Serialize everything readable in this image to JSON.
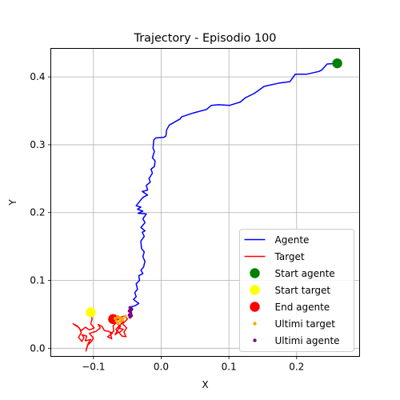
{
  "chart_data": {
    "type": "line",
    "title": "Trajectory - Episodio 100",
    "xlabel": "X",
    "ylabel": "Y",
    "xlim": [
      -0.163,
      0.293
    ],
    "ylim": [
      -0.012,
      0.442
    ],
    "grid": true,
    "legend_position": "lower-right",
    "xticks": [
      -0.1,
      0.0,
      0.1,
      0.2
    ],
    "xtick_labels": [
      "−0.1",
      "0.0",
      "0.1",
      "0.2"
    ],
    "yticks": [
      0.0,
      0.1,
      0.2,
      0.3,
      0.4
    ],
    "ytick_labels": [
      "0.0",
      "0.1",
      "0.2",
      "0.3",
      "0.4"
    ],
    "series": [
      {
        "name": "Agente",
        "kind": "line",
        "color": "#0000ff",
        "points": [
          [
            0.26,
            0.42
          ],
          [
            0.245,
            0.419
          ],
          [
            0.237,
            0.41
          ],
          [
            0.233,
            0.408
          ],
          [
            0.215,
            0.404
          ],
          [
            0.198,
            0.404
          ],
          [
            0.193,
            0.397
          ],
          [
            0.19,
            0.393
          ],
          [
            0.175,
            0.391
          ],
          [
            0.152,
            0.386
          ],
          [
            0.138,
            0.376
          ],
          [
            0.124,
            0.369
          ],
          [
            0.117,
            0.363
          ],
          [
            0.101,
            0.358
          ],
          [
            0.085,
            0.359
          ],
          [
            0.074,
            0.358
          ],
          [
            0.067,
            0.352
          ],
          [
            0.048,
            0.347
          ],
          [
            0.03,
            0.341
          ],
          [
            0.028,
            0.338
          ],
          [
            0.012,
            0.329
          ],
          [
            0.008,
            0.322
          ],
          [
            0.007,
            0.313
          ],
          [
            0.004,
            0.311
          ],
          [
            -0.008,
            0.31
          ],
          [
            -0.011,
            0.307
          ],
          [
            -0.012,
            0.295
          ],
          [
            -0.01,
            0.29
          ],
          [
            -0.013,
            0.281
          ],
          [
            -0.009,
            0.276
          ],
          [
            -0.01,
            0.268
          ],
          [
            -0.015,
            0.264
          ],
          [
            -0.013,
            0.258
          ],
          [
            -0.018,
            0.25
          ],
          [
            -0.016,
            0.245
          ],
          [
            -0.022,
            0.24
          ],
          [
            -0.02,
            0.233
          ],
          [
            -0.028,
            0.231
          ],
          [
            -0.02,
            0.226
          ],
          [
            -0.026,
            0.223
          ],
          [
            -0.029,
            0.22
          ],
          [
            -0.037,
            0.21
          ],
          [
            -0.03,
            0.208
          ],
          [
            -0.035,
            0.205
          ],
          [
            -0.027,
            0.202
          ],
          [
            -0.034,
            0.199
          ],
          [
            -0.022,
            0.198
          ],
          [
            -0.027,
            0.191
          ],
          [
            -0.024,
            0.185
          ],
          [
            -0.03,
            0.178
          ],
          [
            -0.024,
            0.173
          ],
          [
            -0.028,
            0.171
          ],
          [
            -0.025,
            0.165
          ],
          [
            -0.03,
            0.158
          ],
          [
            -0.029,
            0.147
          ],
          [
            -0.025,
            0.142
          ],
          [
            -0.027,
            0.135
          ],
          [
            -0.024,
            0.128
          ],
          [
            -0.026,
            0.12
          ],
          [
            -0.03,
            0.115
          ],
          [
            -0.027,
            0.11
          ],
          [
            -0.033,
            0.107
          ],
          [
            -0.032,
            0.1
          ],
          [
            -0.037,
            0.095
          ],
          [
            -0.035,
            0.087
          ],
          [
            -0.039,
            0.082
          ],
          [
            -0.037,
            0.076
          ],
          [
            -0.041,
            0.072
          ],
          [
            -0.033,
            0.066
          ],
          [
            -0.038,
            0.063
          ],
          [
            -0.044,
            0.061
          ],
          [
            -0.042,
            0.057
          ],
          [
            -0.046,
            0.053
          ],
          [
            -0.047,
            0.048
          ]
        ]
      },
      {
        "name": "Target",
        "kind": "line",
        "color": "#ff0000",
        "points": [
          [
            -0.104,
            0.053
          ],
          [
            -0.102,
            0.043
          ],
          [
            -0.104,
            0.036
          ],
          [
            -0.099,
            0.03
          ],
          [
            -0.106,
            0.027
          ],
          [
            -0.112,
            0.031
          ],
          [
            -0.118,
            0.026
          ],
          [
            -0.124,
            0.033
          ],
          [
            -0.13,
            0.036
          ],
          [
            -0.121,
            0.03
          ],
          [
            -0.118,
            0.023
          ],
          [
            -0.122,
            0.016
          ],
          [
            -0.117,
            0.01
          ],
          [
            -0.114,
            0.016
          ],
          [
            -0.117,
            0.02
          ],
          [
            -0.11,
            0.018
          ],
          [
            -0.112,
            0.011
          ],
          [
            -0.104,
            0.013
          ],
          [
            -0.108,
            0.007
          ],
          [
            -0.111,
            -0.004
          ],
          [
            -0.109,
            0.004
          ],
          [
            -0.103,
            0.01
          ],
          [
            -0.1,
            0.015
          ],
          [
            -0.106,
            0.022
          ],
          [
            -0.096,
            0.025
          ],
          [
            -0.09,
            0.03
          ],
          [
            -0.093,
            0.035
          ],
          [
            -0.087,
            0.032
          ],
          [
            -0.084,
            0.026
          ],
          [
            -0.078,
            0.025
          ],
          [
            -0.072,
            0.022
          ],
          [
            -0.079,
            0.017
          ],
          [
            -0.073,
            0.014
          ],
          [
            -0.075,
            0.022
          ],
          [
            -0.07,
            0.025
          ],
          [
            -0.071,
            0.033
          ],
          [
            -0.066,
            0.038
          ],
          [
            -0.07,
            0.044
          ],
          [
            -0.064,
            0.048
          ],
          [
            -0.06,
            0.044
          ],
          [
            -0.056,
            0.04
          ],
          [
            -0.06,
            0.035
          ],
          [
            -0.064,
            0.03
          ],
          [
            -0.056,
            0.028
          ],
          [
            -0.062,
            0.023
          ],
          [
            -0.058,
            0.018
          ],
          [
            -0.052,
            0.017
          ],
          [
            -0.055,
            0.024
          ],
          [
            -0.051,
            0.03
          ],
          [
            -0.057,
            0.036
          ],
          [
            -0.05,
            0.043
          ],
          [
            -0.053,
            0.048
          ],
          [
            -0.059,
            0.046
          ],
          [
            -0.066,
            0.04
          ],
          [
            -0.062,
            0.033
          ],
          [
            -0.067,
            0.028
          ],
          [
            -0.063,
            0.024
          ],
          [
            -0.068,
            0.02
          ],
          [
            -0.065,
            0.026
          ],
          [
            -0.06,
            0.032
          ],
          [
            -0.066,
            0.037
          ],
          [
            -0.07,
            0.043
          ]
        ]
      },
      {
        "name": "Start agente",
        "kind": "point",
        "color": "#008000",
        "size": 6.2,
        "points": [
          [
            0.26,
            0.42
          ]
        ]
      },
      {
        "name": "Start target",
        "kind": "point",
        "color": "#ffff00",
        "size": 6.2,
        "points": [
          [
            -0.104,
            0.053
          ]
        ]
      },
      {
        "name": "End agente",
        "kind": "point",
        "color": "#ff0000",
        "size": 6.2,
        "points": [
          [
            -0.071,
            0.043
          ]
        ]
      },
      {
        "name": "Ultimi target",
        "kind": "point",
        "color": "#ffa500",
        "size": 2.0,
        "points": [
          [
            -0.053,
            0.047
          ],
          [
            -0.057,
            0.043
          ],
          [
            -0.06,
            0.04
          ],
          [
            -0.064,
            0.037
          ],
          [
            -0.066,
            0.04
          ],
          [
            -0.068,
            0.044
          ],
          [
            -0.064,
            0.046
          ],
          [
            -0.061,
            0.045
          ],
          [
            -0.058,
            0.041
          ]
        ]
      },
      {
        "name": "Ultimi agente",
        "kind": "point",
        "color": "#800080",
        "size": 2.0,
        "points": [
          [
            -0.045,
            0.057
          ],
          [
            -0.046,
            0.06
          ],
          [
            -0.047,
            0.055
          ],
          [
            -0.045,
            0.052
          ],
          [
            -0.044,
            0.048
          ],
          [
            -0.046,
            0.046
          ],
          [
            -0.047,
            0.049
          ]
        ]
      }
    ],
    "legend": [
      {
        "label": "Agente",
        "kind": "line",
        "color": "#0000ff"
      },
      {
        "label": "Target",
        "kind": "line",
        "color": "#ff0000"
      },
      {
        "label": "Start agente",
        "kind": "big-dot",
        "color": "#008000"
      },
      {
        "label": "Start target",
        "kind": "big-dot",
        "color": "#ffff00"
      },
      {
        "label": "End agente",
        "kind": "big-dot",
        "color": "#ff0000"
      },
      {
        "label": "Ultimi target",
        "kind": "small-dot",
        "color": "#ffa500"
      },
      {
        "label": "Ultimi agente",
        "kind": "small-dot",
        "color": "#800080"
      }
    ]
  }
}
